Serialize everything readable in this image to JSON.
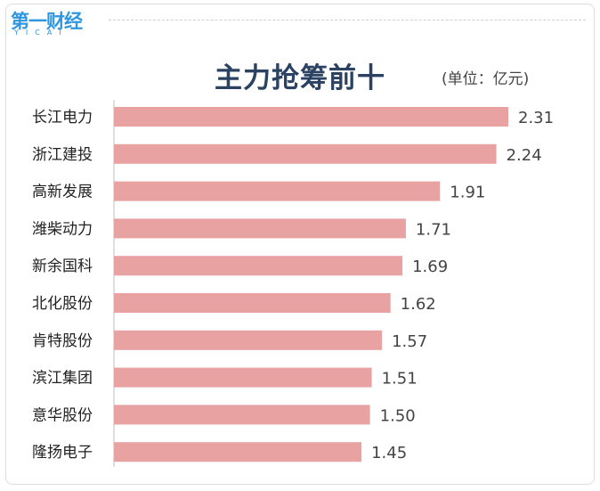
{
  "brand": {
    "name": "第一财经",
    "subtext": "YICAI",
    "color": "#2f97df"
  },
  "chart_data": {
    "type": "bar",
    "orientation": "horizontal",
    "title": "主力抢筹前十",
    "unit": "(单位：亿元)",
    "categories": [
      "长江电力",
      "浙江建投",
      "高新发展",
      "潍柴动力",
      "新余国科",
      "北化股份",
      "肯特股份",
      "滨江集团",
      "意华股份",
      "隆扬电子"
    ],
    "values": [
      2.31,
      2.24,
      1.91,
      1.71,
      1.69,
      1.62,
      1.57,
      1.51,
      1.5,
      1.45
    ],
    "value_labels": [
      "2.31",
      "2.24",
      "1.91",
      "1.71",
      "1.69",
      "1.62",
      "1.57",
      "1.51",
      "1.50",
      "1.45"
    ],
    "xlim": [
      0,
      2.31
    ],
    "grid": false,
    "bar_color": "#e8a2a2",
    "title_color": "#2b4262"
  }
}
